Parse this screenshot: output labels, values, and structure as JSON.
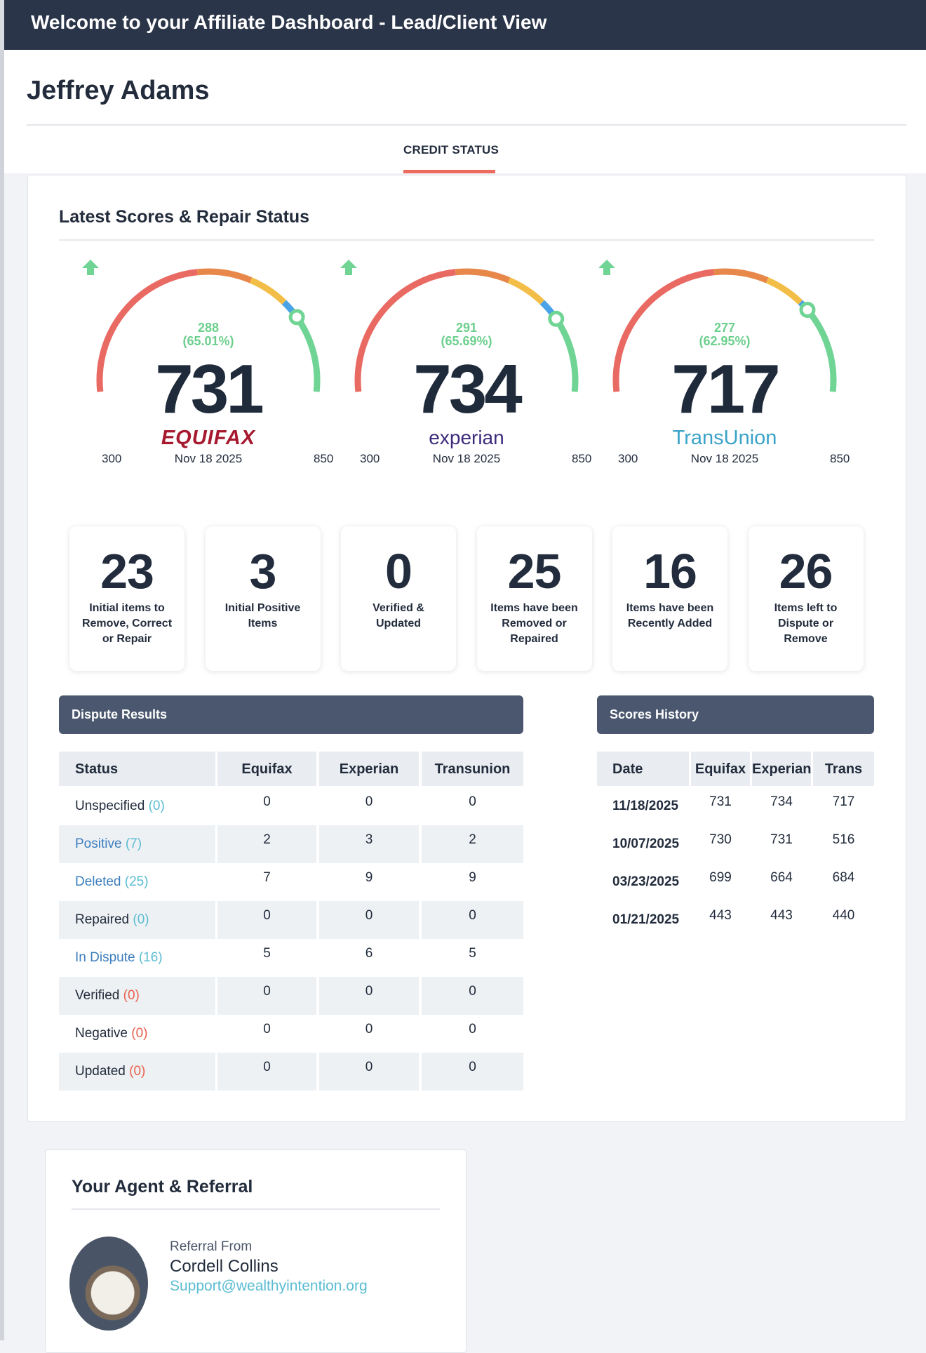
{
  "header": {
    "title": "Welcome to your Affiliate Dashboard - Lead/Client View"
  },
  "client": {
    "name": "Jeffrey Adams"
  },
  "tabs": [
    {
      "label": "CREDIT STATUS",
      "active": true
    }
  ],
  "scores_section": {
    "title": "Latest Scores & Repair Status"
  },
  "gauges": [
    {
      "bureau": "EQUIFAX",
      "logo_style": "equifax",
      "score": 731,
      "change": "288",
      "change_pct": "(65.01%)",
      "min": "300",
      "max": "850",
      "date": "Nov 18 2025",
      "trend": "up"
    },
    {
      "bureau": "experian",
      "logo_style": "experian",
      "score": 734,
      "change": "291",
      "change_pct": "(65.69%)",
      "min": "300",
      "max": "850",
      "date": "Nov 18 2025",
      "trend": "up"
    },
    {
      "bureau": "TransUnion",
      "logo_style": "transunion",
      "score": 717,
      "change": "277",
      "change_pct": "(62.95%)",
      "min": "300",
      "max": "850",
      "date": "Nov 18 2025",
      "trend": "up"
    }
  ],
  "gauge_colors": {
    "red": "#e96a63",
    "orange": "#e8874a",
    "yellow": "#f2be47",
    "blue": "#4aa3e6",
    "green": "#6fd494",
    "delta": "#6ccf8d"
  },
  "stats": [
    {
      "value": "23",
      "label": "Initial items to Remove, Correct or Repair"
    },
    {
      "value": "3",
      "label": "Initial Positive Items"
    },
    {
      "value": "0",
      "label": "Verified & Updated"
    },
    {
      "value": "25",
      "label": "Items have been Removed or Repaired"
    },
    {
      "value": "16",
      "label": "Items have been Recently Added"
    },
    {
      "value": "26",
      "label": "Items left to Dispute or Remove"
    }
  ],
  "dispute": {
    "title": "Dispute Results",
    "columns": [
      "Status",
      "Equifax",
      "Experian",
      "Transunion"
    ],
    "rows": [
      {
        "status": "Unspecified",
        "count": "(0)",
        "label_color": "#222c3c",
        "count_color": "#5bbcd2",
        "values": [
          "0",
          "0",
          "0"
        ]
      },
      {
        "status": "Positive",
        "count": "(7)",
        "label_color": "#3b7dbd",
        "count_color": "#5bbcd2",
        "values": [
          "2",
          "3",
          "2"
        ]
      },
      {
        "status": "Deleted",
        "count": "(25)",
        "label_color": "#3b7dbd",
        "count_color": "#5bbcd2",
        "values": [
          "7",
          "9",
          "9"
        ]
      },
      {
        "status": "Repaired",
        "count": "(0)",
        "label_color": "#222c3c",
        "count_color": "#5bbcd2",
        "values": [
          "0",
          "0",
          "0"
        ]
      },
      {
        "status": "In Dispute",
        "count": "(16)",
        "label_color": "#3b7dbd",
        "count_color": "#5bbcd2",
        "values": [
          "5",
          "6",
          "5"
        ]
      },
      {
        "status": "Verified",
        "count": "(0)",
        "label_color": "#222c3c",
        "count_color": "#e8604c",
        "values": [
          "0",
          "0",
          "0"
        ]
      },
      {
        "status": "Negative",
        "count": "(0)",
        "label_color": "#222c3c",
        "count_color": "#e8604c",
        "values": [
          "0",
          "0",
          "0"
        ]
      },
      {
        "status": "Updated",
        "count": "(0)",
        "label_color": "#222c3c",
        "count_color": "#e8604c",
        "values": [
          "0",
          "0",
          "0"
        ]
      }
    ]
  },
  "history": {
    "title": "Scores History",
    "columns": [
      "Date",
      "Equifax",
      "Experian",
      "Trans"
    ],
    "rows": [
      {
        "date": "11/18/2025",
        "values": [
          "731",
          "734",
          "717"
        ]
      },
      {
        "date": "10/07/2025",
        "values": [
          "730",
          "731",
          "516"
        ]
      },
      {
        "date": "03/23/2025",
        "values": [
          "699",
          "664",
          "684"
        ]
      },
      {
        "date": "01/21/2025",
        "values": [
          "443",
          "443",
          "440"
        ]
      }
    ]
  },
  "agent": {
    "title": "Your Agent & Referral",
    "referral_label": "Referral From",
    "name": "Cordell Collins",
    "email": "Support@wealthyintention.org"
  }
}
